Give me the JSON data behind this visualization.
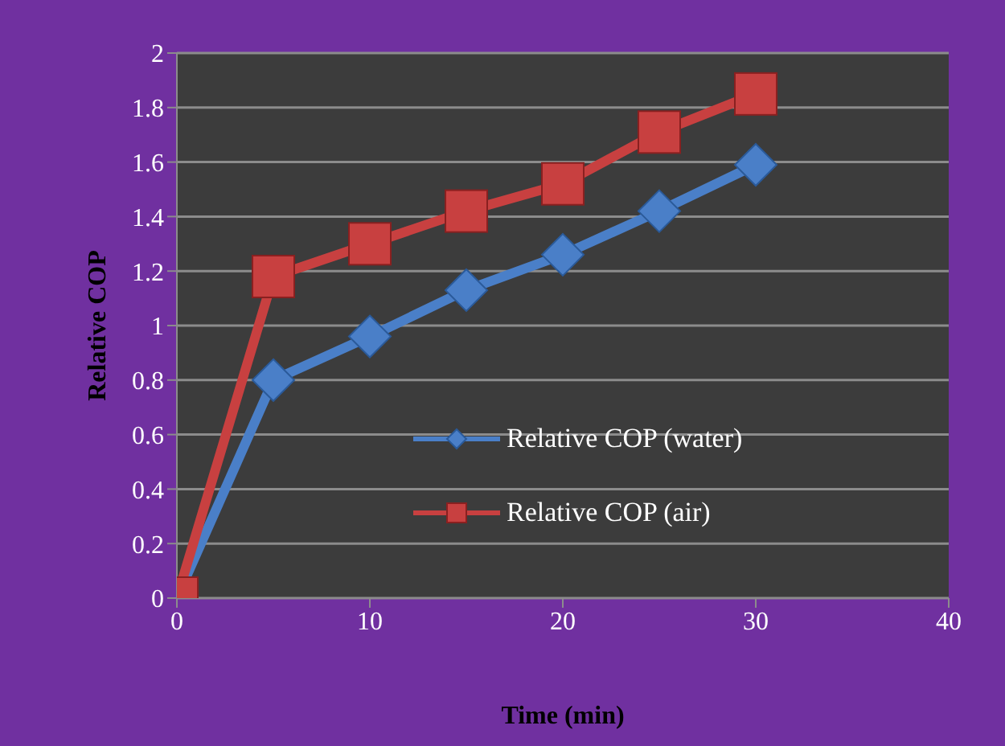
{
  "chart_data": {
    "type": "line",
    "xlabel": "Time (min)",
    "ylabel": "Relative COP",
    "x": [
      0,
      5,
      10,
      15,
      20,
      25,
      30
    ],
    "series": [
      {
        "name": "Relative COP (water)",
        "color": "#4a7fc8",
        "values": [
          0,
          0.8,
          0.96,
          1.13,
          1.26,
          1.42,
          1.59
        ],
        "marker": "diamond"
      },
      {
        "name": "Relative COP (air)",
        "color": "#c84040",
        "values": [
          0,
          1.18,
          1.3,
          1.42,
          1.52,
          1.71,
          1.85
        ],
        "marker": "square"
      }
    ],
    "xlim": [
      0,
      40
    ],
    "xticks": [
      0,
      10,
      20,
      30,
      40
    ],
    "ylim": [
      0,
      2
    ],
    "yticks": [
      0,
      0.2,
      0.4,
      0.6,
      0.8,
      1,
      1.2,
      1.4,
      1.6,
      1.8,
      2
    ],
    "grid": "y",
    "legend": "right"
  }
}
